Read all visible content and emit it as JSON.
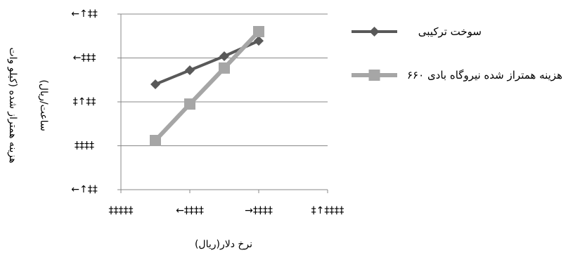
{
  "chart_data": {
    "type": "line",
    "y_label_lines": [
      "هزینه همتراز شده (کیلو وات",
      "ساعت/ریال)"
    ],
    "x_label": "نرخ دلار(ریال)",
    "x": [
      5000,
      10000,
      15000,
      20000
    ],
    "series": [
      {
        "name": "سوخت ترکیبی",
        "color": "#595959",
        "marker": "diamond",
        "values": [
          240,
          272,
          304,
          339
        ]
      },
      {
        "name": "هزینه همتراز شده نیروگاه بادی ۶۶۰",
        "color": "#a6a6a6",
        "marker": "square",
        "values": [
          112,
          195,
          277,
          360
        ]
      }
    ],
    "xlim": [
      0,
      30000
    ],
    "xticks": [
      {
        "value": 0,
        "label": "‡‡‡‡‡"
      },
      {
        "value": 10000,
        "label": "←‡‡‡‡"
      },
      {
        "value": 20000,
        "label": "→‡‡‡‡"
      },
      {
        "value": 30000,
        "label": "‡↑‡‡‡‡"
      }
    ],
    "ylim": [
      0,
      400
    ],
    "yticks": [
      {
        "value": 0,
        "label": "←↑‡‡"
      },
      {
        "value": 100,
        "label": "‡‡‡‡"
      },
      {
        "value": 200,
        "label": "‡↑‡‡"
      },
      {
        "value": 300,
        "label": "←‡‡‡"
      },
      {
        "value": 400,
        "label": "←↑‡‡"
      }
    ],
    "grid": true
  }
}
